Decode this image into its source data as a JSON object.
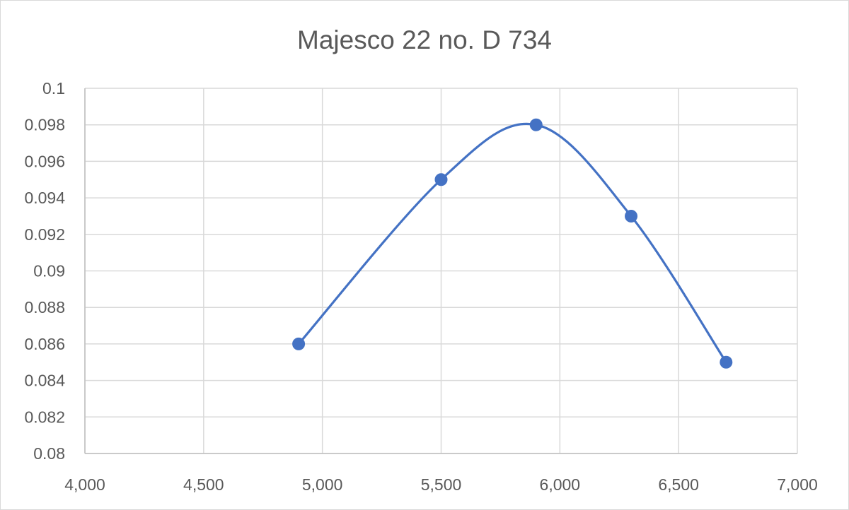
{
  "chart_data": {
    "type": "scatter",
    "title": "Majesco 22 no. D 734",
    "xlabel": "",
    "ylabel": "",
    "xlim": [
      4000,
      7000
    ],
    "ylim": [
      0.08,
      0.1
    ],
    "x_ticks": [
      "4,000",
      "4,500",
      "5,000",
      "5,500",
      "6,000",
      "6,500",
      "7,000"
    ],
    "y_ticks": [
      "0.08",
      "0.082",
      "0.084",
      "0.086",
      "0.088",
      "0.09",
      "0.092",
      "0.094",
      "0.096",
      "0.098",
      "0.1"
    ],
    "grid": true,
    "legend": "none",
    "smooth_line": true,
    "series": [
      {
        "color": "#4472c4",
        "x": [
          4900,
          5500,
          5900,
          6300,
          6700
        ],
        "y": [
          0.086,
          0.095,
          0.098,
          0.093,
          0.085
        ]
      }
    ]
  }
}
